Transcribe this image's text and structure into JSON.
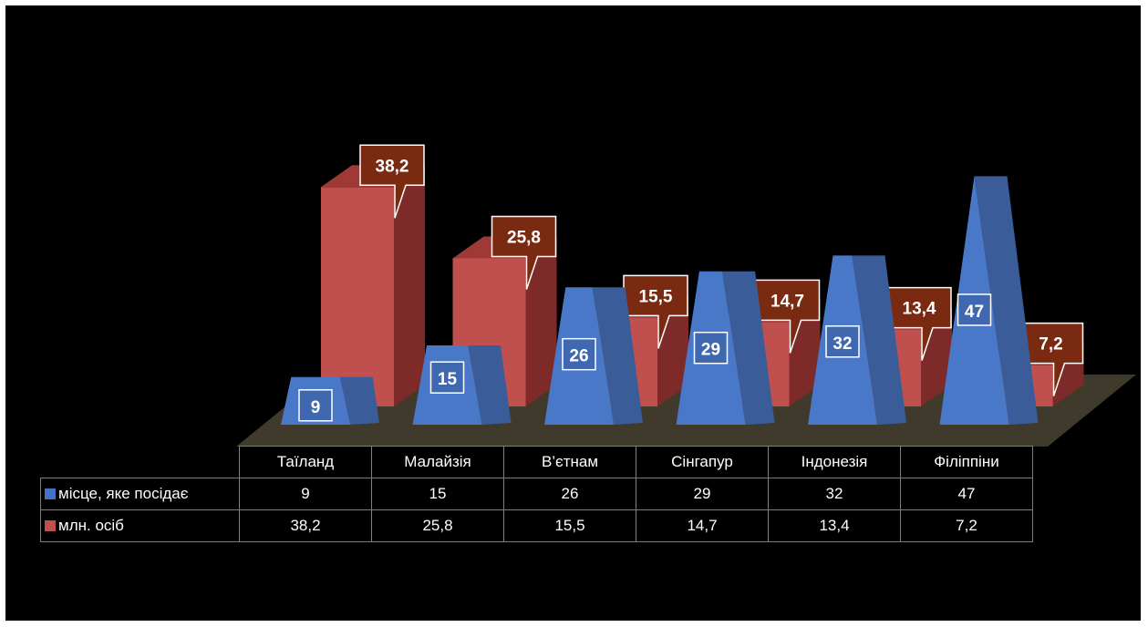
{
  "chart_data": {
    "type": "bar",
    "categories": [
      "Таїланд",
      "Малайзія",
      "В’єтнам",
      "Сінгапур",
      "Індонезія",
      "Філіппіни"
    ],
    "series": [
      {
        "name": "місце, яке посідає",
        "values": [
          9,
          15,
          26,
          29,
          32,
          47
        ],
        "labels": [
          "9",
          "15",
          "26",
          "29",
          "32",
          "47"
        ],
        "color": "#4472c4",
        "shape": "pyramid"
      },
      {
        "name": "млн. осіб",
        "values": [
          38.2,
          25.8,
          15.5,
          14.7,
          13.4,
          7.2
        ],
        "labels": [
          "38,2",
          "25,8",
          "15,5",
          "14,7",
          "13,4",
          "7,2"
        ],
        "color": "#c0504d",
        "shape": "box"
      }
    ],
    "data_table": true,
    "style": "3d",
    "background": "#000000"
  }
}
